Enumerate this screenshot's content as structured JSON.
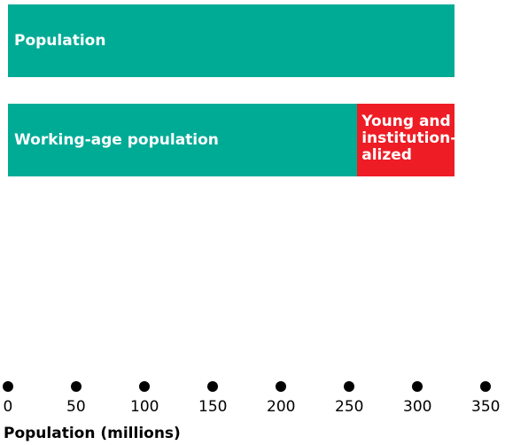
{
  "chart_data": {
    "type": "bar",
    "orientation": "horizontal",
    "stacked": true,
    "categories": [
      "Population",
      "Working-age population"
    ],
    "series": [
      {
        "values": [
          327,
          256
        ],
        "color": "#00ab96"
      },
      {
        "values": [
          0,
          71
        ],
        "color": "#ee1c25"
      }
    ],
    "bar_labels": [
      "Population",
      "Working-age population"
    ],
    "segment_labels": [
      "",
      "Young and\ninstitution-\nalized"
    ],
    "xlabel": "Population (millions)",
    "xlim": [
      0,
      350
    ],
    "xticks": [
      0,
      50,
      100,
      150,
      200,
      250,
      300,
      350
    ],
    "grid": false,
    "legend": "none"
  }
}
